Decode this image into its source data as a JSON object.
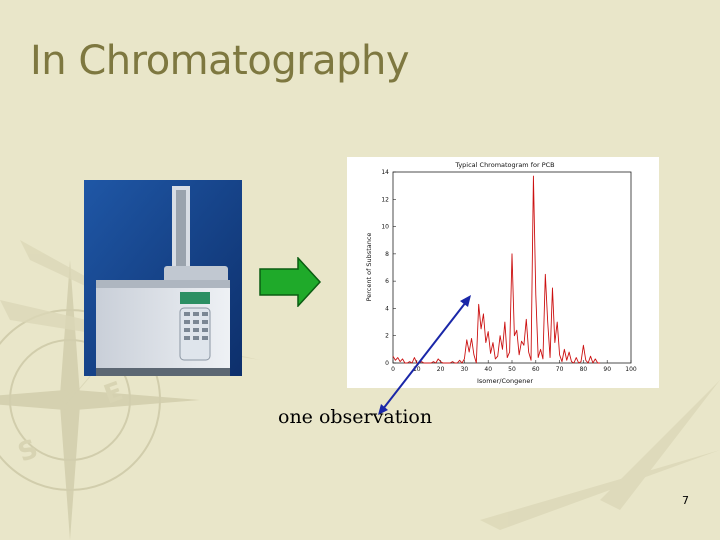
{
  "slide": {
    "title": "In Chromatography",
    "caption": "one observation",
    "page_number": "7"
  },
  "colors": {
    "background": "#e9e6c9",
    "title": "#7e7840",
    "arrow_fill": "#1faa2a",
    "chart_line": "#cc1111",
    "pointer": "#1a27a8"
  },
  "icons": {
    "instrument": "gas-chromatograph-icon",
    "arrow": "right-arrow-icon",
    "pointer": "pointer-arrow-icon",
    "background": "compass-watermark-icon"
  },
  "chart_data": {
    "type": "line",
    "title": "Typical Chromatogram for PCB",
    "xlabel": "Isomer/Congener",
    "ylabel": "Percent of Substance",
    "xlim": [
      0,
      100
    ],
    "ylim": [
      0,
      14
    ],
    "xticks": [
      0,
      10,
      20,
      30,
      40,
      50,
      60,
      70,
      80,
      90,
      100
    ],
    "yticks": [
      0,
      2,
      4,
      6,
      8,
      10,
      12,
      14
    ],
    "grid": false,
    "series": [
      {
        "x": [
          0,
          1,
          2,
          3,
          4,
          5,
          6,
          7,
          8,
          9,
          10,
          11,
          12,
          13,
          14,
          15,
          16,
          17,
          18,
          19,
          20,
          21,
          22,
          23,
          24,
          25,
          26,
          27,
          28,
          29,
          30,
          31,
          32,
          33,
          34,
          35,
          36,
          37,
          38,
          39,
          40,
          41,
          42,
          43,
          44,
          45,
          46,
          47,
          48,
          49,
          50,
          51,
          52,
          53,
          54,
          55,
          56,
          57,
          58,
          59,
          60,
          61,
          62,
          63,
          64,
          65,
          66,
          67,
          68,
          69,
          70,
          71,
          72,
          73,
          74,
          75,
          76,
          77,
          78,
          79,
          80,
          81,
          82,
          83,
          84,
          85,
          86,
          87
        ],
        "y": [
          0.5,
          0.2,
          0.4,
          0.1,
          0.3,
          0.0,
          0.0,
          0.1,
          0.0,
          0.4,
          0.0,
          0.0,
          0.1,
          0.0,
          0.0,
          0.0,
          0.0,
          0.1,
          0.0,
          0.3,
          0.1,
          0.0,
          0.0,
          0.0,
          0.0,
          0.1,
          0.0,
          0.0,
          0.2,
          0.0,
          0.3,
          1.7,
          0.8,
          1.8,
          0.6,
          0.0,
          4.3,
          2.5,
          3.6,
          1.5,
          2.3,
          0.7,
          1.5,
          0.3,
          0.5,
          2.0,
          1.0,
          3.0,
          0.4,
          0.8,
          8.0,
          2.0,
          2.4,
          0.6,
          1.6,
          1.3,
          3.2,
          0.8,
          0.2,
          13.7,
          5.0,
          0.4,
          1.0,
          0.3,
          6.5,
          3.0,
          0.4,
          5.5,
          1.5,
          3.0,
          0.6,
          0.1,
          1.0,
          0.2,
          0.8,
          0.1,
          0.0,
          0.4,
          0.0,
          0.1,
          1.3,
          0.2,
          0.0,
          0.5,
          0.0,
          0.3,
          0.0,
          0.0
        ]
      }
    ]
  }
}
